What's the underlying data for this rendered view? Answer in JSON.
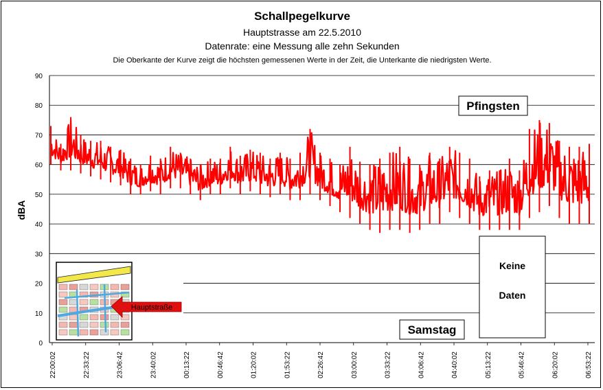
{
  "chart_data": {
    "type": "line",
    "title": "Schallpegelkurve",
    "subtitle_1": "Hauptstrasse am 22.5.2010",
    "subtitle_2": "Datenrate: eine Messung alle zehn Sekunden",
    "note": "Die Oberkante der Kurve zeigt die höchsten  gemessenen Werte  in der Zeit, die Unterkante  die niedrigsten Werte.",
    "ylabel": "dBA",
    "xlabel": "",
    "ylim": [
      0,
      90
    ],
    "y_ticks": [
      "0",
      "10",
      "20",
      "30",
      "40",
      "50",
      "60",
      "70",
      "80",
      "90"
    ],
    "x_ticks": [
      "22:00:02",
      "22:33:22",
      "23:06:42",
      "23:40:02",
      "00:13:22",
      "00:46:42",
      "01:20:02",
      "01:53:22",
      "02:26:42",
      "03:00:02",
      "03:33:22",
      "04:06:42",
      "04:40:02",
      "05:13:22",
      "05:46:42",
      "06:20:02",
      "06:53:22"
    ],
    "grid": true,
    "series_color": "#ff0000",
    "series": [
      {
        "x": [
          "22:00",
          "22:10",
          "22:20",
          "22:30",
          "22:40",
          "22:50",
          "23:00",
          "23:10",
          "23:20",
          "23:30",
          "23:40",
          "23:50",
          "00:00",
          "00:10",
          "00:20",
          "00:30",
          "00:40",
          "00:50",
          "01:00",
          "01:10",
          "01:20",
          "01:30",
          "01:40",
          "01:50",
          "02:00",
          "02:10",
          "02:20",
          "02:30",
          "02:40",
          "02:50",
          "03:00",
          "03:10",
          "03:20",
          "03:30",
          "03:40",
          "03:50",
          "04:00",
          "04:10",
          "04:20",
          "04:30",
          "04:40",
          "04:50",
          "05:00",
          "05:10",
          "05:20",
          "05:30",
          "05:40",
          "05:50",
          "06:00",
          "06:10",
          "06:20",
          "06:30",
          "06:40",
          "06:50",
          "07:00"
        ],
        "max": [
          73,
          67,
          76,
          70,
          68,
          68,
          66,
          65,
          62,
          60,
          63,
          62,
          66,
          64,
          62,
          60,
          62,
          62,
          66,
          63,
          65,
          64,
          62,
          64,
          62,
          64,
          72,
          64,
          62,
          60,
          66,
          61,
          60,
          62,
          64,
          66,
          62,
          60,
          64,
          62,
          66,
          64,
          62,
          56,
          58,
          58,
          62,
          58,
          72,
          75,
          74,
          68,
          66,
          66,
          67
        ],
        "min": [
          60,
          58,
          58,
          57,
          56,
          55,
          54,
          53,
          50,
          50,
          51,
          50,
          52,
          52,
          50,
          48,
          50,
          50,
          52,
          50,
          51,
          50,
          49,
          50,
          48,
          48,
          50,
          48,
          46,
          44,
          42,
          40,
          38,
          37,
          38,
          38,
          37,
          38,
          40,
          40,
          44,
          42,
          40,
          38,
          38,
          38,
          38,
          38,
          42,
          44,
          46,
          42,
          40,
          40,
          40
        ]
      }
    ]
  },
  "annotations": {
    "pfingsten": "Pfingsten",
    "samstag": "Samstag",
    "no_data_line1": "Keine",
    "no_data_line2": "Daten",
    "map_label": "Hauptstraße"
  },
  "colors": {
    "curve": "#ff0000",
    "grid": "#000000",
    "map_street": "#4fa8e0",
    "map_street_yellow": "#f2e84a",
    "map_arrow": "#e01010"
  }
}
